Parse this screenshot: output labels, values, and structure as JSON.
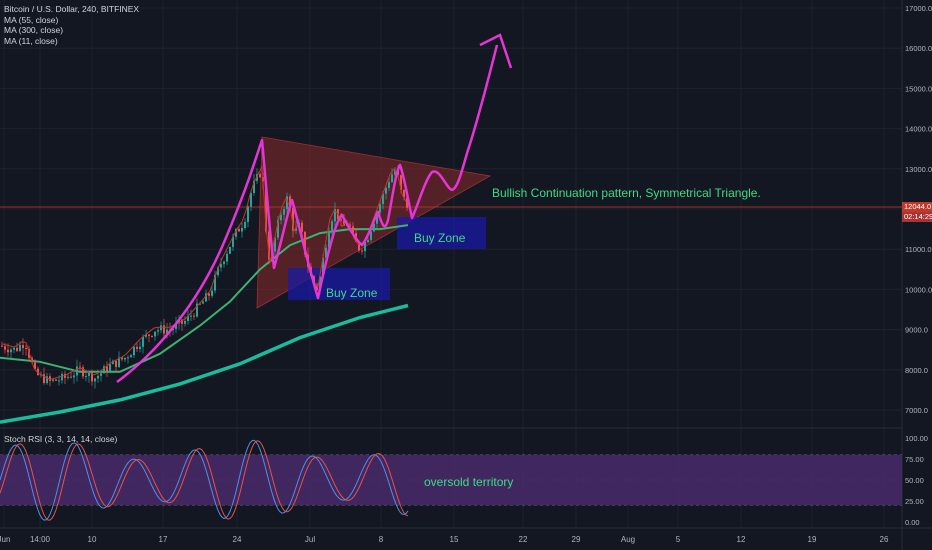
{
  "legend": {
    "title": "Bitcoin / U.S. Dollar, 240, BITFINEX",
    "ma55": "MA (55, close)",
    "ma300": "MA (300, close)",
    "ma11": "MA (11, close)"
  },
  "rsi_legend": "Stoch RSI (3, 3, 14, 14, close)",
  "annotations": {
    "pattern": "Bullish Continuation pattern, Symmetrical Triangle.",
    "buy_zone_1": "Buy Zone",
    "buy_zone_2": "Buy Zone",
    "oversold": "oversold territory"
  },
  "price_tag": {
    "price": "12044.0",
    "countdown": "02:14:29"
  },
  "colors": {
    "background": "#131722",
    "candle_up": "#26a69a",
    "candle_down": "#ef5350",
    "ma55": "#3cb371",
    "ma300": "#1abc9c",
    "ma11": "#c0392b",
    "drawing": "#e535d6",
    "triangle": "#8b2a2a",
    "buy_zone": "#1a1aa6",
    "rsi_band": "#4a2a6a",
    "rsi_k": "#4f8fe8",
    "rsi_d": "#e5534b"
  },
  "chart_data": {
    "type": "candlestick",
    "symbol": "Bitcoin / U.S. Dollar, 240, BITFINEX",
    "y_ticks": [
      "17000.0",
      "16000.0",
      "15000.0",
      "14000.0",
      "13000.0",
      "12000.0",
      "11000.0",
      "10000.0",
      "9000.0",
      "8000.0",
      "7000.0"
    ],
    "ylim": [
      6300,
      17200
    ],
    "x_ticks": [
      "Jun",
      "14:00",
      "10",
      "17",
      "24",
      "Jul",
      "8",
      "15",
      "22",
      "29",
      "Aug",
      "5",
      "12",
      "19",
      "26"
    ],
    "rsi_ticks": [
      "100.00",
      "75.00",
      "50.00",
      "25.00",
      "0.00"
    ],
    "rsi_band": [
      20,
      80
    ],
    "last_price": 12044.0,
    "price_path": [
      [
        0,
        8600
      ],
      [
        15,
        8500
      ],
      [
        25,
        8700
      ],
      [
        35,
        7900
      ],
      [
        50,
        7700
      ],
      [
        65,
        7800
      ],
      [
        80,
        8000
      ],
      [
        95,
        7800
      ],
      [
        110,
        8100
      ],
      [
        125,
        8300
      ],
      [
        140,
        8700
      ],
      [
        155,
        9000
      ],
      [
        170,
        9000
      ],
      [
        185,
        9200
      ],
      [
        200,
        9600
      ],
      [
        210,
        9900
      ],
      [
        220,
        10600
      ],
      [
        228,
        11000
      ],
      [
        236,
        11400
      ],
      [
        244,
        11700
      ],
      [
        252,
        12500
      ],
      [
        258,
        12800
      ],
      [
        262,
        13000
      ],
      [
        266,
        11500
      ],
      [
        270,
        10600
      ],
      [
        276,
        11400
      ],
      [
        282,
        12000
      ],
      [
        288,
        12300
      ],
      [
        294,
        11400
      ],
      [
        300,
        11600
      ],
      [
        306,
        10800
      ],
      [
        312,
        10200
      ],
      [
        318,
        10000
      ],
      [
        324,
        10900
      ],
      [
        330,
        11700
      ],
      [
        336,
        12000
      ],
      [
        342,
        11500
      ],
      [
        348,
        11700
      ],
      [
        354,
        11200
      ],
      [
        360,
        11000
      ],
      [
        366,
        11200
      ],
      [
        372,
        11600
      ],
      [
        378,
        12000
      ],
      [
        384,
        12400
      ],
      [
        390,
        12800
      ],
      [
        396,
        13000
      ],
      [
        402,
        12300
      ],
      [
        408,
        12044
      ]
    ],
    "ma55": [
      [
        0,
        8300
      ],
      [
        40,
        8200
      ],
      [
        80,
        7950
      ],
      [
        120,
        7950
      ],
      [
        160,
        8400
      ],
      [
        200,
        9100
      ],
      [
        230,
        9700
      ],
      [
        260,
        10500
      ],
      [
        290,
        11100
      ],
      [
        320,
        11400
      ],
      [
        350,
        11500
      ],
      [
        380,
        11500
      ],
      [
        408,
        11600
      ]
    ],
    "ma300": [
      [
        0,
        6700
      ],
      [
        60,
        6950
      ],
      [
        120,
        7250
      ],
      [
        180,
        7650
      ],
      [
        240,
        8150
      ],
      [
        300,
        8800
      ],
      [
        360,
        9300
      ],
      [
        408,
        9600
      ]
    ]
  }
}
